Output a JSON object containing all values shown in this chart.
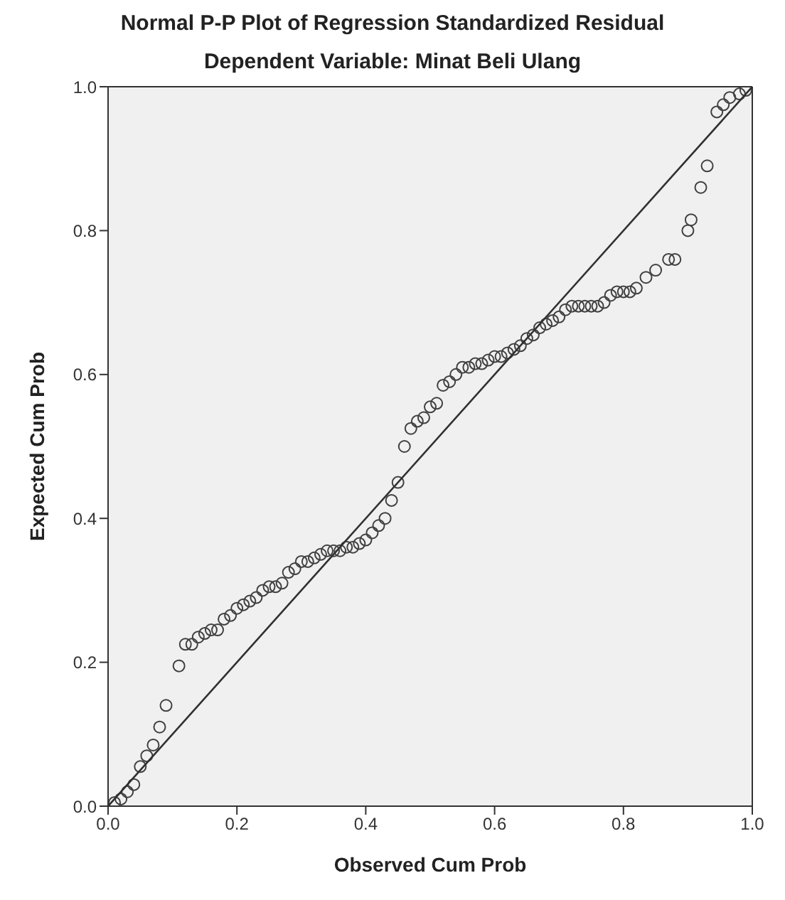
{
  "chart_data": {
    "type": "scatter",
    "title": "Normal P-P Plot of Regression Standardized Residual",
    "subtitle": "Dependent Variable: Minat Beli Ulang",
    "xlabel": "Observed Cum Prob",
    "ylabel": "Expected Cum Prob",
    "xlim": [
      0,
      1
    ],
    "ylim": [
      0,
      1
    ],
    "xticks": [
      {
        "value": 0,
        "label": "0.0"
      },
      {
        "value": 0.2,
        "label": "0.2"
      },
      {
        "value": 0.4,
        "label": "0.4"
      },
      {
        "value": 0.6,
        "label": "0.6"
      },
      {
        "value": 0.8,
        "label": "0.8"
      },
      {
        "value": 1,
        "label": "1.0"
      }
    ],
    "yticks": [
      {
        "value": 0,
        "label": "0.0"
      },
      {
        "value": 0.2,
        "label": "0.2"
      },
      {
        "value": 0.4,
        "label": "0.4"
      },
      {
        "value": 0.6,
        "label": "0.6"
      },
      {
        "value": 0.8,
        "label": "0.8"
      },
      {
        "value": 1,
        "label": "1.0"
      }
    ],
    "grid": false,
    "legend": false,
    "series": [
      {
        "marker": "circle",
        "color": "#404040",
        "x": [
          0.01,
          0.02,
          0.03,
          0.04,
          0.05,
          0.06,
          0.07,
          0.08,
          0.09,
          0.11,
          0.12,
          0.13,
          0.14,
          0.15,
          0.16,
          0.17,
          0.18,
          0.19,
          0.2,
          0.21,
          0.22,
          0.23,
          0.24,
          0.25,
          0.26,
          0.27,
          0.28,
          0.29,
          0.3,
          0.31,
          0.32,
          0.33,
          0.34,
          0.35,
          0.36,
          0.37,
          0.38,
          0.39,
          0.4,
          0.41,
          0.42,
          0.43,
          0.44,
          0.45,
          0.46,
          0.47,
          0.48,
          0.49,
          0.5,
          0.51,
          0.52,
          0.53,
          0.54,
          0.55,
          0.56,
          0.57,
          0.58,
          0.59,
          0.6,
          0.61,
          0.62,
          0.63,
          0.64,
          0.65,
          0.66,
          0.67,
          0.68,
          0.69,
          0.7,
          0.71,
          0.72,
          0.73,
          0.74,
          0.75,
          0.76,
          0.77,
          0.78,
          0.79,
          0.8,
          0.81,
          0.82,
          0.835,
          0.85,
          0.87,
          0.88,
          0.9,
          0.905,
          0.92,
          0.93,
          0.945,
          0.955,
          0.965,
          0.98,
          0.99
        ],
        "values": [
          0.005,
          0.01,
          0.02,
          0.03,
          0.055,
          0.07,
          0.085,
          0.11,
          0.14,
          0.195,
          0.225,
          0.225,
          0.235,
          0.24,
          0.245,
          0.245,
          0.26,
          0.265,
          0.275,
          0.28,
          0.285,
          0.29,
          0.3,
          0.305,
          0.305,
          0.31,
          0.325,
          0.33,
          0.34,
          0.34,
          0.345,
          0.35,
          0.355,
          0.355,
          0.355,
          0.36,
          0.36,
          0.365,
          0.37,
          0.38,
          0.39,
          0.4,
          0.425,
          0.45,
          0.5,
          0.525,
          0.535,
          0.54,
          0.555,
          0.56,
          0.585,
          0.59,
          0.6,
          0.61,
          0.61,
          0.615,
          0.615,
          0.62,
          0.625,
          0.625,
          0.63,
          0.635,
          0.64,
          0.65,
          0.655,
          0.665,
          0.67,
          0.675,
          0.68,
          0.69,
          0.695,
          0.695,
          0.695,
          0.695,
          0.695,
          0.7,
          0.71,
          0.715,
          0.715,
          0.715,
          0.72,
          0.735,
          0.745,
          0.76,
          0.76,
          0.8,
          0.815,
          0.86,
          0.89,
          0.965,
          0.975,
          0.985,
          0.99,
          0.995
        ]
      },
      {
        "type": "line",
        "marker": "none",
        "color": "#303030",
        "x": [
          0,
          1
        ],
        "values": [
          0,
          1
        ]
      }
    ]
  }
}
